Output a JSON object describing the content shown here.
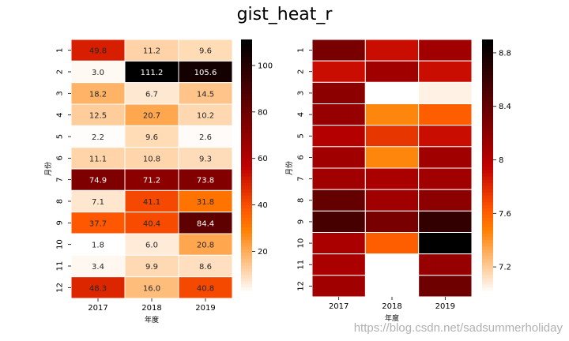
{
  "title": "gist_heat_r",
  "watermark": "https://blog.csdn.net/sadsummerholiday",
  "chart_data": [
    {
      "type": "heatmap",
      "colormap": "gist_heat_r",
      "annotated": true,
      "xlabel": "年度",
      "ylabel": "月份",
      "x_categories": [
        "2017",
        "2018",
        "2019"
      ],
      "y_categories": [
        "1",
        "2",
        "3",
        "4",
        "5",
        "6",
        "7",
        "8",
        "9",
        "10",
        "11",
        "12"
      ],
      "values": [
        [
          49.8,
          11.2,
          9.6
        ],
        [
          3.0,
          111.2,
          105.6
        ],
        [
          18.2,
          6.7,
          14.5
        ],
        [
          12.5,
          20.7,
          10.2
        ],
        [
          2.2,
          9.6,
          2.6
        ],
        [
          11.1,
          10.8,
          9.3
        ],
        [
          74.9,
          71.2,
          73.8
        ],
        [
          7.1,
          41.1,
          31.8
        ],
        [
          37.7,
          40.4,
          84.4
        ],
        [
          1.8,
          6.0,
          20.8
        ],
        [
          3.4,
          9.9,
          8.6
        ],
        [
          48.3,
          16.0,
          40.8
        ]
      ],
      "vmin": 1.8,
      "vmax": 111.2,
      "colorbar_ticks": [
        20,
        40,
        60,
        80,
        100
      ]
    },
    {
      "type": "heatmap",
      "colormap": "gist_heat_r",
      "annotated": false,
      "xlabel": "年度",
      "ylabel": "月份",
      "x_categories": [
        "2017",
        "2018",
        "2019"
      ],
      "y_categories": [
        "1",
        "2",
        "3",
        "4",
        "5",
        "6",
        "7",
        "8",
        "9",
        "10",
        "11",
        "12"
      ],
      "values": [
        [
          8.3,
          7.9,
          8.1
        ],
        [
          7.9,
          8.1,
          7.9
        ],
        [
          8.2,
          7.0,
          7.05
        ],
        [
          8.15,
          7.45,
          7.6
        ],
        [
          8.0,
          7.75,
          7.9
        ],
        [
          8.1,
          7.45,
          8.1
        ],
        [
          8.1,
          8.05,
          8.1
        ],
        [
          8.4,
          8.1,
          8.2
        ],
        [
          8.55,
          8.3,
          8.65
        ],
        [
          8.05,
          7.6,
          8.95
        ],
        [
          8.05,
          null,
          8.15
        ],
        [
          8.1,
          null,
          8.35
        ]
      ],
      "vmin": 7.0,
      "vmax": 8.9,
      "colorbar_ticks": [
        7.2,
        7.6,
        8.0,
        8.4,
        8.8
      ]
    }
  ]
}
